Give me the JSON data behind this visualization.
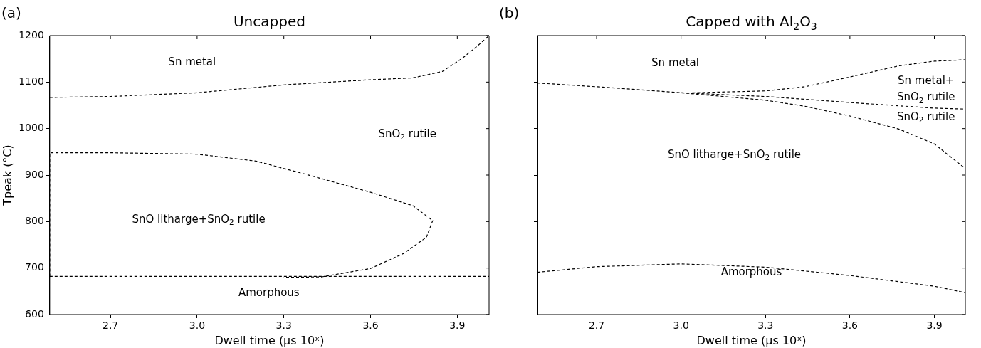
{
  "chart_data": [
    {
      "type": "line",
      "title": "Uncapped",
      "xlabel": "Dwell time (µs 10ˣ)",
      "ylabel": "Tpeak (°C)",
      "line_style": "dashed",
      "marker": "none",
      "grid": false,
      "legend": false,
      "xlim": [
        2.49,
        4.01
      ],
      "xticks": [
        {
          "value": 2.7,
          "label": "2.7"
        },
        {
          "value": 3.0,
          "label": "3.0"
        },
        {
          "value": 3.3,
          "label": "3.3"
        },
        {
          "value": 3.6,
          "label": "3.6"
        },
        {
          "value": 3.9,
          "label": "3.9"
        }
      ],
      "ylim": [
        600,
        1200
      ],
      "yticks": [
        600,
        700,
        800,
        900,
        1000,
        1100,
        1200
      ],
      "series": [
        {
          "color": "#000000",
          "x": [
            2.49,
            2.7,
            3.0,
            3.3,
            3.6,
            3.747,
            3.849,
            3.917,
            3.974,
            4.01
          ],
          "values": [
            1067,
            1069,
            1077,
            1094,
            1105,
            1109,
            1123,
            1151,
            1180,
            1200
          ]
        },
        {
          "color": "#000000",
          "x": [
            2.49,
            2.49,
            2.7,
            3.0,
            3.204,
            3.374,
            3.6,
            3.747,
            3.815,
            3.793,
            3.713,
            3.6,
            3.43,
            3.3
          ],
          "values": [
            682,
            948,
            948,
            945,
            930,
            902,
            863,
            834,
            802,
            766,
            731,
            699,
            681,
            680
          ]
        },
        {
          "color": "#000000",
          "x": [
            2.49,
            4.01
          ],
          "values": [
            682,
            682
          ]
        }
      ],
      "annotations": [
        "(a)",
        "Sn metal",
        "SnO$_{2}$ rutile",
        "SnO litharge+SnO$_{2}$ rutile",
        "Amorphous"
      ]
    },
    {
      "type": "line",
      "title": "Capped with Al$_{2}$O$_{3}$",
      "xlabel": "Dwell time (µs 10ˣ)",
      "line_style": "dashed",
      "marker": "none",
      "grid": false,
      "legend": false,
      "tick_labels": "x",
      "xlim": [
        2.49,
        4.01
      ],
      "xticks": [
        {
          "value": 2.7,
          "label": "2.7"
        },
        {
          "value": 3.0,
          "label": "3.0"
        },
        {
          "value": 3.3,
          "label": "3.3"
        },
        {
          "value": 3.6,
          "label": "3.6"
        },
        {
          "value": 3.9,
          "label": "3.9"
        }
      ],
      "ylim": [
        600,
        1200
      ],
      "yticks": [
        600,
        700,
        800,
        900,
        1000,
        1100,
        1200
      ],
      "series": [
        {
          "color": "#000000",
          "x": [
            3.04,
            3.3,
            3.44,
            3.6,
            3.774,
            3.9,
            4.01
          ],
          "values": [
            1077,
            1081,
            1090,
            1111,
            1135,
            1145,
            1148
          ]
        },
        {
          "color": "#000000",
          "x": [
            2.49,
            2.7,
            3.0,
            3.3,
            3.6,
            3.9,
            4.01
          ],
          "values": [
            1098,
            1090,
            1077,
            1069,
            1056,
            1044,
            1042
          ]
        },
        {
          "color": "#000000",
          "x": [
            3.0,
            3.3,
            3.44,
            3.6,
            3.774,
            3.9,
            4.01
          ],
          "values": [
            1077,
            1061,
            1048,
            1027,
            999,
            967,
            914
          ]
        },
        {
          "color": "#000000",
          "x": [
            2.49,
            2.49,
            2.7,
            3.0,
            3.3,
            3.6,
            3.9,
            4.01,
            4.01
          ],
          "values": [
            1098,
            691,
            703,
            709,
            702,
            684,
            661,
            647,
            914
          ]
        }
      ],
      "annotations": [
        "(b)",
        "Sn metal",
        "Sn metal+",
        "SnO$_{2}$ rutile",
        "SnO$_{2}$ rutile",
        "SnO litharge+SnO$_{2}$ rutile",
        "Amorphous"
      ]
    }
  ]
}
